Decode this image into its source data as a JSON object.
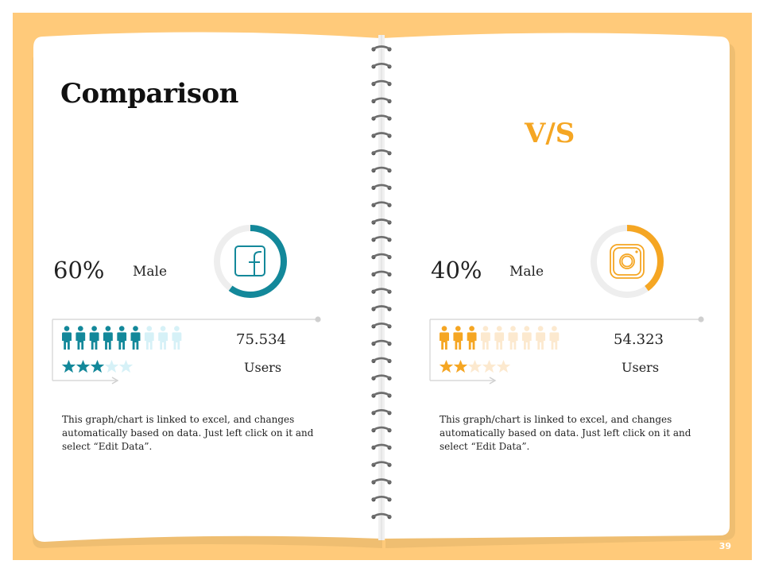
{
  "title": "Comparison",
  "vs_label": "V/S",
  "page_number": "39",
  "colors": {
    "background": "#FFCA7A",
    "facebook": "#13889A",
    "facebook_light": "#D6F1F7",
    "instagram": "#F5A623",
    "instagram_light": "#FCE9CF",
    "ring_track": "#EEEEEE"
  },
  "left": {
    "icon": "facebook-icon",
    "percent": "60%",
    "gender": "Male",
    "users_value": "75.534",
    "users_label": "Users",
    "ring_fraction": 0.6,
    "people_total": 9,
    "people_filled": 6,
    "stars_total": 5,
    "stars_filled": 3,
    "description": "This graph/chart is linked to excel, and changes automatically based on data. Just left click on it and select “Edit Data”."
  },
  "right": {
    "icon": "instagram-icon",
    "percent": "40%",
    "gender": "Male",
    "users_value": "54.323",
    "users_label": "Users",
    "ring_fraction": 0.4,
    "people_total": 9,
    "people_filled": 3,
    "stars_total": 5,
    "stars_filled": 2,
    "description": "This graph/chart is linked to excel, and changes automatically based on data. Just left click on it and select “Edit Data”."
  }
}
